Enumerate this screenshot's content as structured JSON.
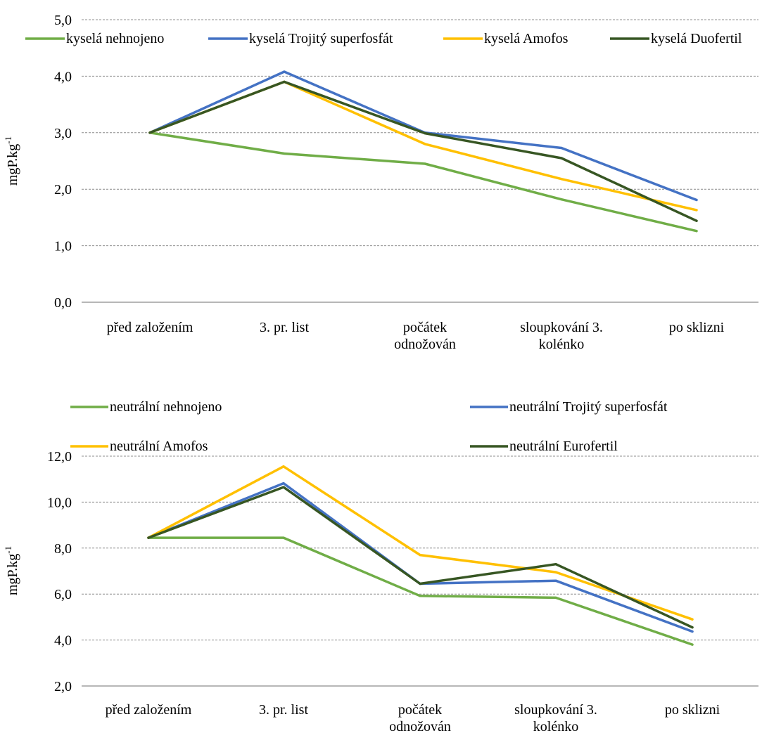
{
  "colors": {
    "light_green": "#70AD47",
    "blue": "#4472C4",
    "yellow": "#FFC000",
    "dark_green": "#375623"
  },
  "chart_data": [
    {
      "type": "line",
      "title": "",
      "xlabel": "",
      "ylabel": "mgP.kg",
      "ylabel_sup": "-1",
      "ylim": [
        0,
        5
      ],
      "ytick_step": 1,
      "ytick_labels": [
        "0,0",
        "1,0",
        "2,0",
        "3,0",
        "4,0",
        "5,0"
      ],
      "grid": true,
      "legend_position": "top",
      "categories": [
        [
          "před založením"
        ],
        [
          "3. pr. list"
        ],
        [
          "počátek",
          "odnožován"
        ],
        [
          "sloupkování 3.",
          "kolénko"
        ],
        [
          "po sklizni"
        ]
      ],
      "series": [
        {
          "name": "kyselá nehnojeno",
          "color": "#70AD47",
          "values": [
            3.0,
            2.63,
            2.45,
            1.82,
            1.26
          ]
        },
        {
          "name": "kyselá Trojitý superfosfát",
          "color": "#4472C4",
          "values": [
            3.0,
            4.08,
            3.0,
            2.73,
            1.81
          ]
        },
        {
          "name": "kyselá Amofos",
          "color": "#FFC000",
          "values": [
            3.0,
            3.9,
            2.8,
            2.18,
            1.63
          ]
        },
        {
          "name": "kyselá Duofertil",
          "color": "#375623",
          "values": [
            3.0,
            3.9,
            2.99,
            2.55,
            1.44
          ]
        }
      ]
    },
    {
      "type": "line",
      "title": "",
      "xlabel": "",
      "ylabel": "mgP.kg",
      "ylabel_sup": "-1",
      "ylim": [
        2,
        12
      ],
      "ytick_step": 2,
      "ytick_labels": [
        "2,0",
        "4,0",
        "6,0",
        "8,0",
        "10,0",
        "12,0"
      ],
      "grid": true,
      "legend_position": "top",
      "categories": [
        [
          "před založením"
        ],
        [
          "3. pr. list"
        ],
        [
          "počátek",
          "odnožován"
        ],
        [
          "sloupkování 3.",
          "kolénko"
        ],
        [
          "po sklizni"
        ]
      ],
      "series": [
        {
          "name": "neutrální nehnojeno",
          "color": "#70AD47",
          "values": [
            8.45,
            8.45,
            5.92,
            5.84,
            3.8
          ]
        },
        {
          "name": "neutrální Trojitý superfosfát",
          "color": "#4472C4",
          "values": [
            8.45,
            10.82,
            6.45,
            6.58,
            4.37
          ]
        },
        {
          "name": "neutrální Amofos",
          "color": "#FFC000",
          "values": [
            8.45,
            11.55,
            7.7,
            6.95,
            4.9
          ]
        },
        {
          "name": "neutrální Eurofertil",
          "color": "#375623",
          "values": [
            8.45,
            10.65,
            6.45,
            7.3,
            4.55
          ]
        }
      ]
    }
  ]
}
